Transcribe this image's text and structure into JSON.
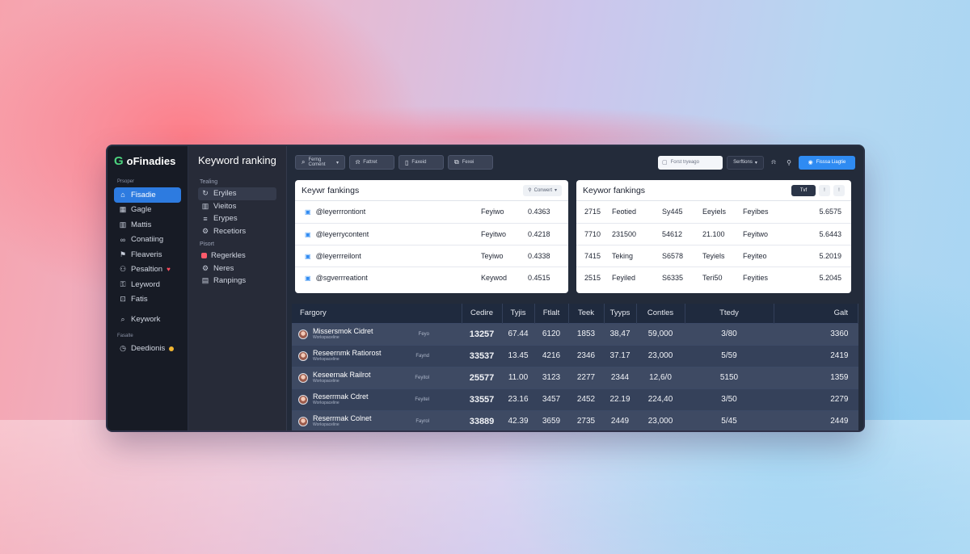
{
  "brand": {
    "name": "oFinadies",
    "logo_letter": "G"
  },
  "nav": {
    "section_label": "Prsoper",
    "items": [
      {
        "label": "Fisadie",
        "icon": "home-icon",
        "active": true
      },
      {
        "label": "Gagle",
        "icon": "grid-icon"
      },
      {
        "label": "Mattis",
        "icon": "chart-icon"
      },
      {
        "label": "Conatiing",
        "icon": "link-icon"
      },
      {
        "label": "Fleaveris",
        "icon": "flag-icon"
      },
      {
        "label": "Pesaltion",
        "icon": "user-icon"
      },
      {
        "label": "Leyword",
        "icon": "key-icon"
      },
      {
        "label": "Fatis",
        "icon": "tag-icon"
      }
    ],
    "keyword_item": {
      "label": "Keywork",
      "icon": "search-icon"
    },
    "section2_label": "Fasalte",
    "bottom_item": {
      "label": "Deedionis",
      "icon": "clock-icon"
    }
  },
  "side": {
    "title": "Keyword ranking",
    "label1": "Tealing",
    "items1": [
      {
        "label": "Eryiles",
        "icon": "refresh-icon",
        "active": true
      },
      {
        "label": "Vieitos",
        "icon": "chart-icon"
      },
      {
        "label": "Erypes",
        "icon": "list-icon"
      },
      {
        "label": "Recetiors",
        "icon": "gear-icon"
      }
    ],
    "label2": "Pisort",
    "items2": [
      {
        "label": "Regerkles",
        "icon": "square-icon",
        "color": "#ff5b6b"
      },
      {
        "label": "Neres",
        "icon": "gear-icon"
      },
      {
        "label": "Ranpings",
        "icon": "bar-icon"
      }
    ]
  },
  "toolbar": {
    "buttons": [
      {
        "label": "Ferng Coment",
        "icon": "search-icon",
        "caret": "▾"
      },
      {
        "label": "Fattret",
        "icon": "bell-icon"
      },
      {
        "label": "Faxeid",
        "icon": "file-icon"
      },
      {
        "label": "Fexei",
        "icon": "copy-icon"
      }
    ],
    "search_placeholder": "Forst tryeago",
    "select_label": "Serftions",
    "primary_label": "Fisssa Liagtie"
  },
  "left_panel": {
    "title": "Keywr fankings",
    "chip_label": "Conwert",
    "rows": [
      {
        "keyword": "@leyerrrontiont",
        "label": "Feyiwo",
        "value": "0.4363"
      },
      {
        "keyword": "@leyerrycontent",
        "label": "Feyitwo",
        "value": "0.4218"
      },
      {
        "keyword": "@leyerrreilont",
        "label": "Teyiwo",
        "value": "0.4338"
      },
      {
        "keyword": "@sgverrreationt",
        "label": "Keywod",
        "value": "0.4515"
      }
    ]
  },
  "right_panel": {
    "title": "Keywor fankings",
    "seg_labels": [
      "Tvf",
      "!",
      "!"
    ],
    "rows": [
      [
        "2715",
        "Feotied",
        "Sy445",
        "Eeyiels",
        "Feyibes",
        "5.6575"
      ],
      [
        "7710",
        "231500",
        "54612",
        "21.100",
        "Feyitwo",
        "5.6443"
      ],
      [
        "7415",
        "Teking",
        "S6578",
        "Teyiels",
        "Feyiteo",
        "5.2019"
      ],
      [
        "2515",
        "Feyiled",
        "S6335",
        "Teri50",
        "Feyities",
        "5.2045"
      ]
    ]
  },
  "main_table": {
    "headers": [
      "Fargory",
      "Cedire",
      "Tyjis",
      "Ftlalt",
      "Teek",
      "Tyyps",
      "Contles",
      "Ttedy",
      "Galt"
    ],
    "rows": [
      {
        "name": "Missersmok Cidret",
        "sub": "Workspaceline",
        "type": "Feyo",
        "c1": "13257",
        "c2": "67.44",
        "c3": "6120",
        "c4": "1853",
        "c5": "38,47",
        "c6": "59,000",
        "c7": "3/80",
        "c8": "3360"
      },
      {
        "name": "Reseernmk Ratiorost",
        "sub": "Workspaceline",
        "type": "Faynd",
        "c1": "33537",
        "c2": "13.45",
        "c3": "4216",
        "c4": "2346",
        "c5": "37.17",
        "c6": "23,000",
        "c7": "5/59",
        "c8": "2419"
      },
      {
        "name": "Keseernak Railrot",
        "sub": "Workspaceline",
        "type": "Feyitol",
        "c1": "25577",
        "c2": "11.00",
        "c3": "3123",
        "c4": "2277",
        "c5": "2344",
        "c6": "12,6/0",
        "c7": "5150",
        "c8": "1359"
      },
      {
        "name": "Reserrmak Cdret",
        "sub": "Workspaceline",
        "type": "Feyitel",
        "c1": "33557",
        "c2": "23.16",
        "c3": "3457",
        "c4": "2452",
        "c5": "22.19",
        "c6": "224,40",
        "c7": "3/50",
        "c8": "2279"
      },
      {
        "name": "Reserrmak Colnet",
        "sub": "Workspaceline",
        "type": "Fayrol",
        "c1": "33889",
        "c2": "42.39",
        "c3": "3659",
        "c4": "2735",
        "c5": "2449",
        "c6": "23,000",
        "c7": "5/45",
        "c8": "2449"
      }
    ]
  },
  "colors": {
    "accent": "#2f8bf2",
    "brand_green": "#4cd37e",
    "alert_red": "#ff4d5e",
    "badge_yellow": "#f2b632"
  }
}
